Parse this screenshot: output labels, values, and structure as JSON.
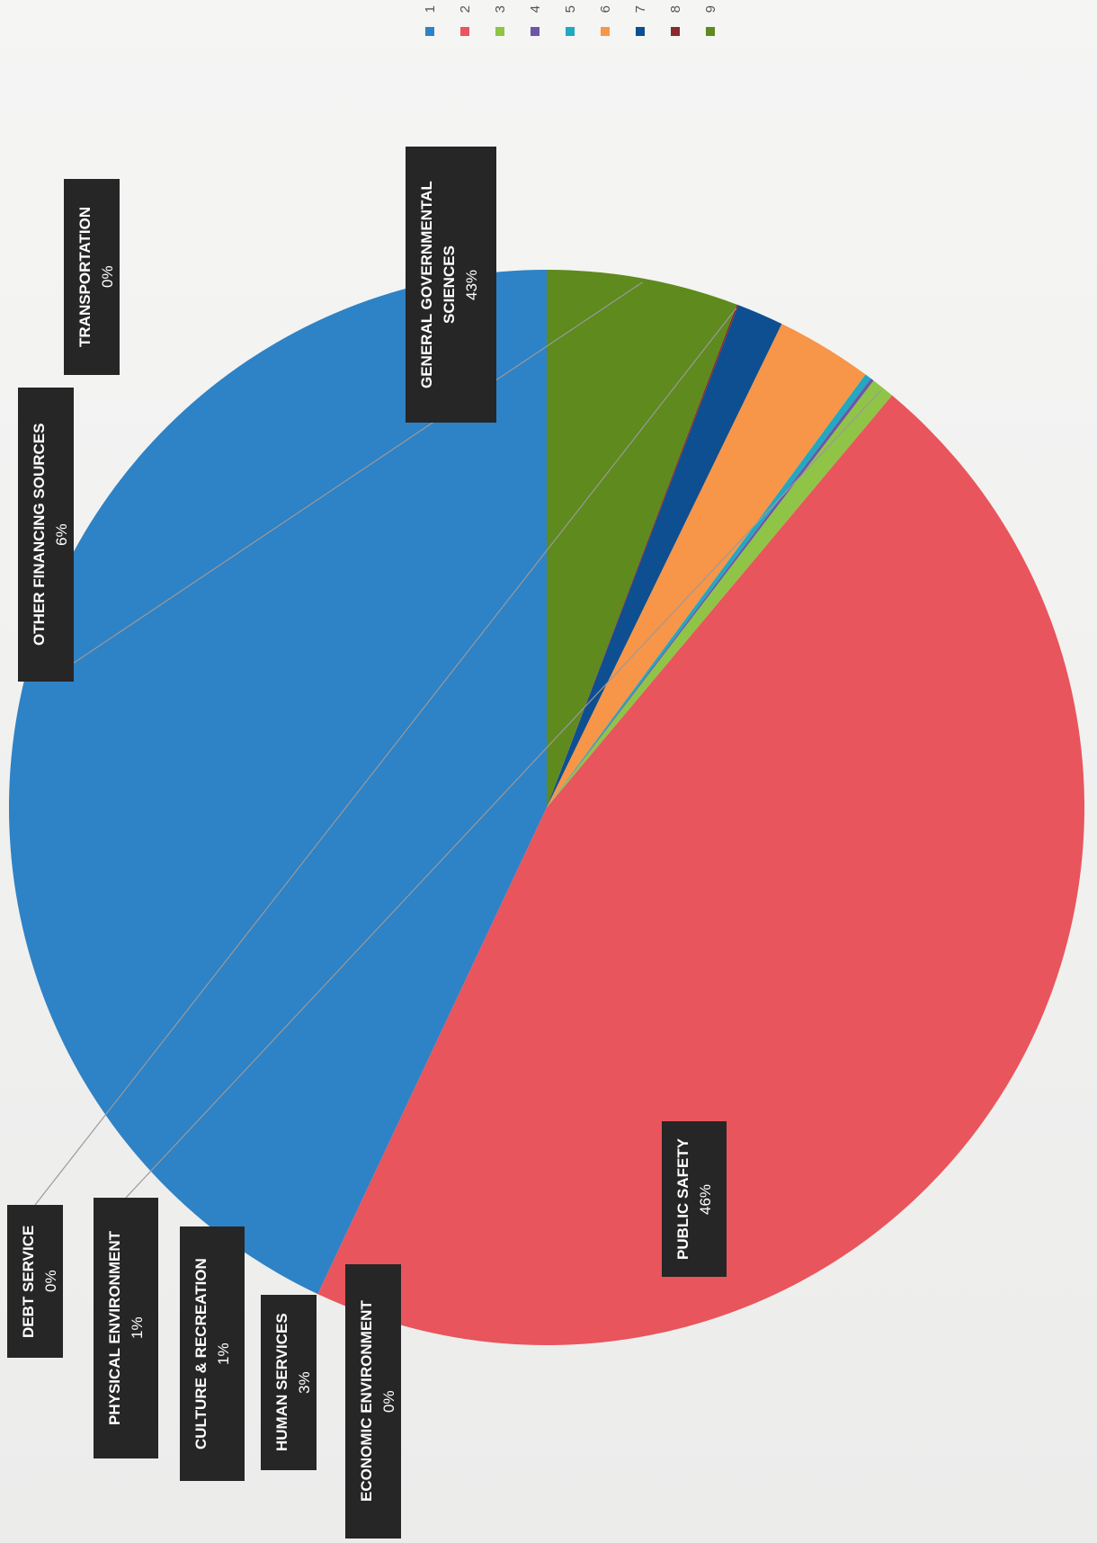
{
  "chart_data": {
    "type": "pie",
    "title": "",
    "slices": [
      {
        "legend": "1",
        "label": "GENERAL GOVERNMENTAL SCIENCES",
        "label_lines": [
          "GENERAL GOVERNMENTAL",
          "SCIENCES"
        ],
        "pct_text": "43%",
        "value": 43.0,
        "color": "#2e82c6"
      },
      {
        "legend": "2",
        "label": "PUBLIC SAFETY",
        "label_lines": [
          "PUBLIC SAFETY"
        ],
        "pct_text": "46%",
        "value": 45.9,
        "color": "#e8555c"
      },
      {
        "legend": "3",
        "label": "PHYSICAL ENVIRONMENT",
        "label_lines": [
          "PHYSICAL ENVIRONMENT"
        ],
        "pct_text": "1%",
        "value": 0.7,
        "color": "#8fc447"
      },
      {
        "legend": "4",
        "label": "TRANSPORTATION",
        "label_lines": [
          "TRANSPORTATION"
        ],
        "pct_text": "0%",
        "value": 0.1,
        "color": "#6d56a6"
      },
      {
        "legend": "5",
        "label": "ECONOMIC ENVIRONMENT",
        "label_lines": [
          "ECONOMIC ENVIRONMENT"
        ],
        "pct_text": "0%",
        "value": 0.2,
        "color": "#22a8c0"
      },
      {
        "legend": "6",
        "label": "HUMAN SERVICES",
        "label_lines": [
          "HUMAN SERVICES"
        ],
        "pct_text": "3%",
        "value": 2.9,
        "color": "#f79548"
      },
      {
        "legend": "7",
        "label": "CULTURE & RECREATION",
        "label_lines": [
          "CULTURE & RECREATION"
        ],
        "pct_text": "1%",
        "value": 1.4,
        "color": "#0d4f91"
      },
      {
        "legend": "8",
        "label": "DEBT SERVICE",
        "label_lines": [
          "DEBT SERVICE"
        ],
        "pct_text": "0%",
        "value": 0.05,
        "color": "#8a2b2b"
      },
      {
        "legend": "9",
        "label": "OTHER FINANCING SOURCES",
        "label_lines": [
          "OTHER FINANCING SOURCES"
        ],
        "pct_text": "6%",
        "value": 5.75,
        "color": "#5e8a1e"
      }
    ],
    "legend_position": "top"
  }
}
